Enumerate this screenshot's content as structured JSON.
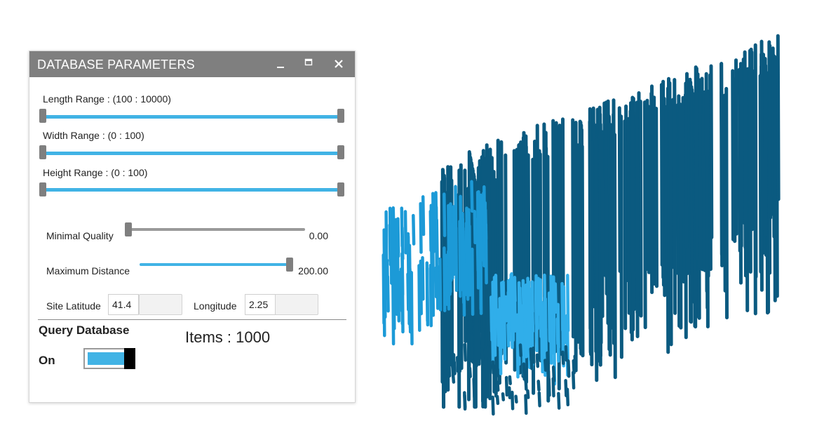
{
  "panel": {
    "title": "DATABASE PARAMETERS",
    "length_range": "Length Range : (100 : 10000)",
    "width_range": "Width Range : (0 : 100)",
    "height_range": "Height Range : (0 : 100)",
    "min_quality": {
      "label": "Minimal Quality",
      "value": "0.00",
      "fraction": 0.0
    },
    "max_distance": {
      "label": "Maximum Distance",
      "value": "200.00",
      "fraction": 1.0
    },
    "latitude": {
      "label": "Site Latitude",
      "value": "41.4"
    },
    "longitude": {
      "label": "Longitude",
      "value": "2.25"
    },
    "query": {
      "label": "Query Database",
      "state": "On"
    },
    "items": "Items : 1000"
  },
  "colors": {
    "accent": "#41b3e5",
    "bar_dark": "#0b5a80",
    "bar_light": "#1c9ad7",
    "titlebar": "#7f7f7f"
  },
  "icons": {
    "minimize": "minimize-icon",
    "maximize": "maximize-icon",
    "close": "close-icon"
  }
}
